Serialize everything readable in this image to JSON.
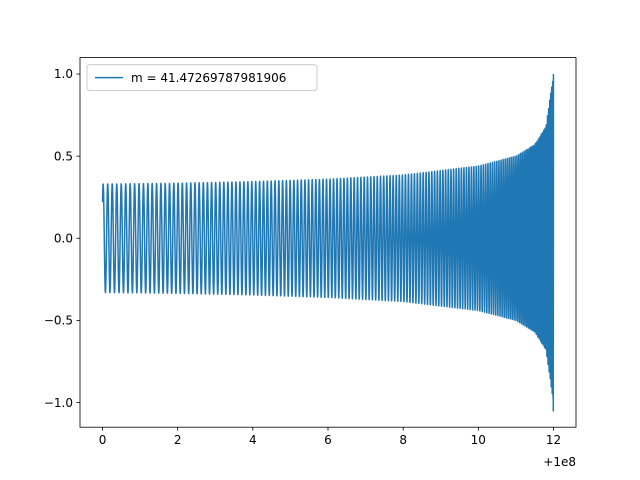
{
  "chart_data": {
    "type": "line",
    "title": "",
    "xlabel": "",
    "ylabel": "",
    "x_offset_label": "+1e8",
    "xlim": [
      -0.6,
      12.6
    ],
    "ylim": [
      -1.15,
      1.1
    ],
    "x_ticks": [
      0,
      2,
      4,
      6,
      8,
      10,
      12
    ],
    "x_tick_labels": [
      "0",
      "2",
      "4",
      "6",
      "8",
      "10",
      "12"
    ],
    "y_ticks": [
      -1.0,
      -0.5,
      0.0,
      0.5,
      1.0
    ],
    "y_tick_labels": [
      "−1.0",
      "−0.5",
      "0.0",
      "0.5",
      "1.0"
    ],
    "grid": false,
    "legend": {
      "placement": "upper-left"
    },
    "series": [
      {
        "name": "m = 41.47269787981906",
        "color": "#1f77b4",
        "envelope": {
          "x": [
            0,
            2,
            4,
            6,
            8,
            10,
            11,
            11.5,
            11.8,
            12.0
          ],
          "amplitude": [
            0.33,
            0.335,
            0.345,
            0.36,
            0.385,
            0.44,
            0.5,
            0.57,
            0.68,
            1.0
          ]
        },
        "start_value": 0.22,
        "end_min": -1.05,
        "end_max": 1.0,
        "cycles": 150
      }
    ]
  }
}
